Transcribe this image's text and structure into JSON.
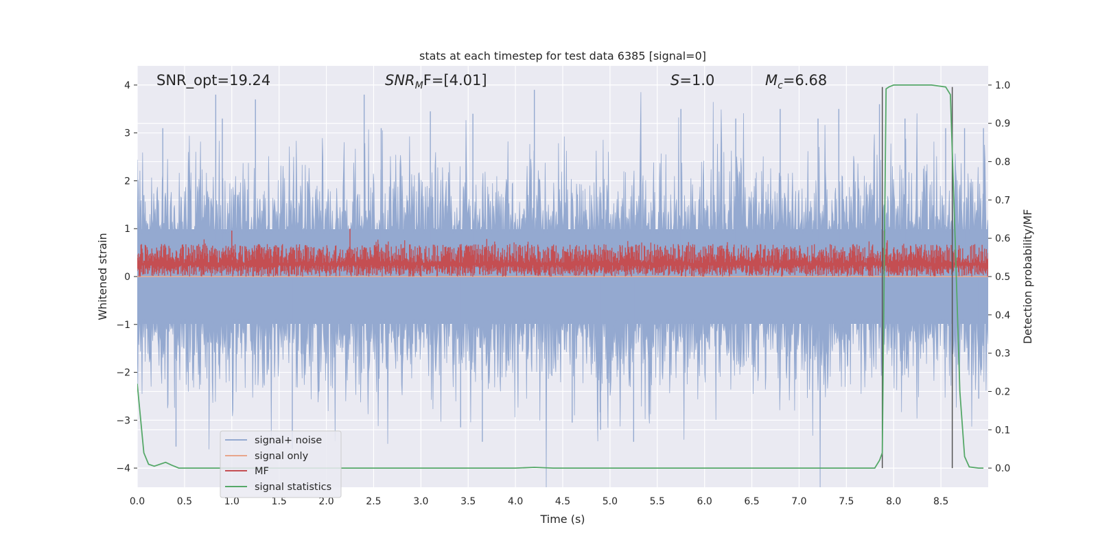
{
  "chart_data": {
    "type": "line",
    "title": "stats at each timestep for test data 6385 [signal=0]",
    "xlabel": "Time (s)",
    "ylabel": "Whitened strain",
    "ylabel_right": "Detection probability/MF",
    "xlim": [
      0,
      9
    ],
    "ylim": [
      -4.4,
      4.4
    ],
    "ylim_right": [
      -0.05,
      1.05
    ],
    "x_ticks": [
      "0.0",
      "0.5",
      "1.0",
      "1.5",
      "2.0",
      "2.5",
      "3.0",
      "3.5",
      "4.0",
      "4.5",
      "5.0",
      "5.5",
      "6.0",
      "6.5",
      "7.0",
      "7.5",
      "8.0",
      "8.5"
    ],
    "y_ticks": [
      "4",
      "3",
      "2",
      "1",
      "0",
      "−1",
      "−2",
      "−3",
      "−4"
    ],
    "y_ticks_right": [
      "1.0",
      "0.9",
      "0.8",
      "0.7",
      "0.6",
      "0.5",
      "0.4",
      "0.3",
      "0.2",
      "0.1",
      "0.0"
    ],
    "grid": true,
    "legend_position": "lower left",
    "annotations": {
      "snr_opt": "SNR_opt=19.24",
      "snr_mf_sym": "SNR",
      "snr_mf_sub": "M",
      "snr_mf_rest": "F=[4.01]",
      "s_sym": "S",
      "s_rest": "=1.0",
      "mc_sym": "M",
      "mc_sub": "c",
      "mc_rest": "=6.68"
    },
    "vertical_markers_x": [
      7.88,
      8.62
    ],
    "series": [
      {
        "name": "signal+ noise",
        "color": "#94a9d0",
        "description": "whitened strain noise",
        "amplitude_typical": [
          -1.8,
          1.8
        ],
        "peaks": [
          {
            "x": 0.07,
            "y": 1.7
          },
          {
            "x": 0.27,
            "y": 3.1
          },
          {
            "x": 0.41,
            "y": -3.55
          },
          {
            "x": 0.83,
            "y": 3.8
          },
          {
            "x": 0.9,
            "y": 3.3
          },
          {
            "x": 1.25,
            "y": 3.7
          },
          {
            "x": 1.64,
            "y": -3.6
          },
          {
            "x": 2.4,
            "y": 3.8
          },
          {
            "x": 2.58,
            "y": 3.1
          },
          {
            "x": 3.1,
            "y": 3.45
          },
          {
            "x": 3.42,
            "y": -3.15
          },
          {
            "x": 3.55,
            "y": 3.4
          },
          {
            "x": 3.65,
            "y": -3.45
          },
          {
            "x": 4.2,
            "y": 3.9
          },
          {
            "x": 4.6,
            "y": -3.05
          },
          {
            "x": 4.9,
            "y": -3.2
          },
          {
            "x": 5.25,
            "y": -3.45
          },
          {
            "x": 5.75,
            "y": 3.5
          },
          {
            "x": 6.33,
            "y": 3.3
          },
          {
            "x": 6.8,
            "y": 3.5
          },
          {
            "x": 7.2,
            "y": 3.3
          },
          {
            "x": 7.42,
            "y": 3.5
          },
          {
            "x": 7.85,
            "y": 3.6
          },
          {
            "x": 8.12,
            "y": 3.3
          },
          {
            "x": 8.55,
            "y": 3.1
          },
          {
            "x": 8.75,
            "y": 3.1
          },
          {
            "x": 8.95,
            "y": 3.1
          },
          {
            "x": 8.9,
            "y": -2.55
          }
        ]
      },
      {
        "name": "signal only",
        "color": "#e8a58a",
        "x": [
          0,
          9
        ],
        "y": [
          0,
          0
        ]
      },
      {
        "name": "MF",
        "color": "#c44e52",
        "axis": "right",
        "description": "matched filter output",
        "typical_range_right": [
          0.5,
          0.6
        ],
        "peaks_right": [
          {
            "x": 1.0,
            "y": 0.62
          },
          {
            "x": 2.25,
            "y": 0.625
          },
          {
            "x": 7.9,
            "y": 0.62
          }
        ]
      },
      {
        "name": "signal statistics",
        "color": "#55a868",
        "axis": "right",
        "x": [
          0.0,
          0.07,
          0.12,
          0.18,
          0.24,
          0.3,
          0.36,
          0.44,
          0.6,
          1.0,
          2.0,
          3.0,
          4.0,
          4.2,
          4.4,
          5.0,
          6.0,
          7.0,
          7.5,
          7.8,
          7.85,
          7.88,
          7.92,
          7.95,
          8.0,
          8.2,
          8.4,
          8.55,
          8.6,
          8.65,
          8.7,
          8.75,
          8.8,
          8.9,
          8.95
        ],
        "y": [
          0.22,
          0.04,
          0.01,
          0.005,
          0.01,
          0.015,
          0.008,
          0.0,
          0.0,
          0.0,
          0.0,
          0.0,
          0.0,
          0.002,
          0.0,
          0.0,
          0.0,
          0.0,
          0.0,
          0.0,
          0.02,
          0.04,
          0.99,
          0.995,
          1.0,
          1.0,
          1.0,
          0.995,
          0.975,
          0.6,
          0.2,
          0.03,
          0.003,
          0.0,
          0.0
        ]
      }
    ]
  }
}
